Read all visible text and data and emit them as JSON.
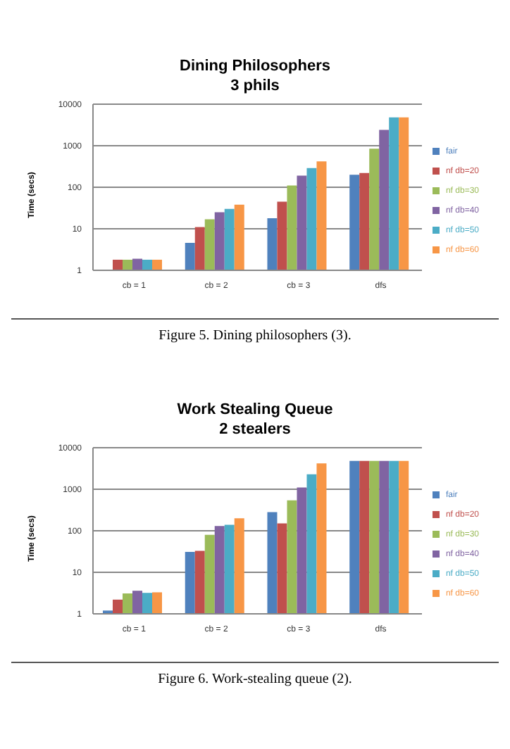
{
  "chart_data": [
    {
      "type": "bar",
      "title": "Dining Philosophers",
      "subtitle": "3 phils",
      "ylabel": "Time (secs)",
      "categories": [
        "cb = 1",
        "cb = 2",
        "cb = 3",
        "dfs"
      ],
      "log": true,
      "ylim": [
        1,
        10000
      ],
      "yticks": [
        1,
        10,
        100,
        1000,
        10000
      ],
      "grid": "y",
      "legend": "right",
      "annotations": [
        "Figure 5.  Dining philosophers (3)."
      ],
      "series": [
        {
          "name": "fair",
          "color": "#4f81bd",
          "values": [
            null,
            4.6,
            18,
            200
          ]
        },
        {
          "name": "nf db=20",
          "color": "#c0504d",
          "values": [
            1.8,
            11,
            45,
            220
          ]
        },
        {
          "name": "nf db=30",
          "color": "#9bbb59",
          "values": [
            1.8,
            17,
            110,
            850
          ]
        },
        {
          "name": "nf db=40",
          "color": "#8064a2",
          "values": [
            1.9,
            25,
            190,
            2400
          ]
        },
        {
          "name": "nf db=50",
          "color": "#4bacc6",
          "values": [
            1.8,
            30,
            290,
            4800
          ]
        },
        {
          "name": "nf db=60",
          "color": "#f79646",
          "values": [
            1.8,
            38,
            420,
            4800
          ]
        }
      ]
    },
    {
      "type": "bar",
      "title": "Work Stealing Queue",
      "subtitle": "2 stealers",
      "ylabel": "Time (secs)",
      "categories": [
        "cb = 1",
        "cb = 2",
        "cb = 3",
        "dfs"
      ],
      "log": true,
      "ylim": [
        1,
        10000
      ],
      "yticks": [
        1,
        10,
        100,
        1000,
        10000
      ],
      "grid": "y",
      "legend": "right",
      "annotations": [
        "Figure 6.  Work-stealing queue (2)."
      ],
      "series": [
        {
          "name": "fair",
          "color": "#4f81bd",
          "values": [
            1.2,
            31,
            280,
            4800
          ]
        },
        {
          "name": "nf db=20",
          "color": "#c0504d",
          "values": [
            2.2,
            33,
            150,
            4800
          ]
        },
        {
          "name": "nf db=30",
          "color": "#9bbb59",
          "values": [
            3.1,
            80,
            540,
            4800
          ]
        },
        {
          "name": "nf db=40",
          "color": "#8064a2",
          "values": [
            3.6,
            130,
            1100,
            4800
          ]
        },
        {
          "name": "nf db=50",
          "color": "#4bacc6",
          "values": [
            3.2,
            140,
            2300,
            4800
          ]
        },
        {
          "name": "nf db=60",
          "color": "#f79646",
          "values": [
            3.3,
            200,
            4200,
            4800
          ]
        }
      ]
    }
  ]
}
